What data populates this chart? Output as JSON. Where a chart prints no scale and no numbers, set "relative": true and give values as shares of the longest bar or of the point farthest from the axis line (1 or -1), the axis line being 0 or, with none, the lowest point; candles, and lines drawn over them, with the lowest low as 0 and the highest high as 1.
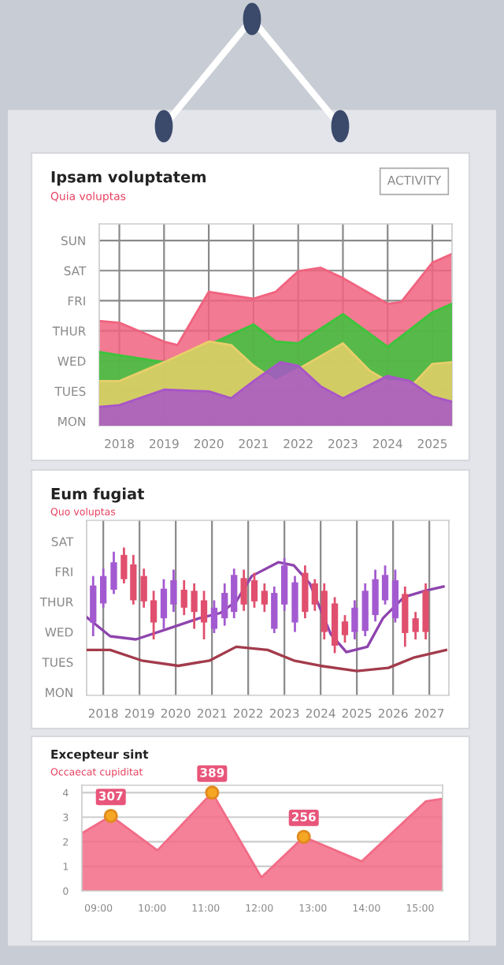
{
  "chart_data": [
    {
      "type": "area",
      "title": "Ipsam voluptatem",
      "subtitle": "Quia voluptas",
      "relative": true,
      "annotations": [
        "MON",
        "TUES",
        "WED",
        "THUR",
        "FRI",
        "SAT",
        "SUN",
        "ACTIVITY"
      ],
      "xlim": [
        2017.55,
        2025.44
      ],
      "xticks": [
        2018,
        2019,
        2020,
        2021,
        2022,
        2023,
        2024,
        2025
      ],
      "grid": true,
      "series": [
        {
          "type": "area",
          "color": "#f0637f",
          "x": [
            2017.55,
            2018,
            2019,
            2019.3,
            2020,
            2021,
            2021.5,
            2022,
            2022.5,
            2023,
            2024,
            2024.3,
            2025,
            2025.44
          ],
          "values": [
            0.61,
            0.6,
            0.49,
            0.47,
            0.78,
            0.74,
            0.78,
            0.9,
            0.92,
            0.86,
            0.71,
            0.72,
            0.95,
            1.0
          ]
        },
        {
          "type": "area",
          "color": "#3cc43c",
          "x": [
            2017.55,
            2018,
            2019,
            2020,
            2021,
            2021.5,
            2022,
            2023,
            2024,
            2025,
            2025.44
          ],
          "values": [
            0.43,
            0.41,
            0.37,
            0.47,
            0.59,
            0.49,
            0.48,
            0.65,
            0.46,
            0.66,
            0.71
          ]
        },
        {
          "type": "area",
          "color": "#e8cf6a",
          "x": [
            2017.55,
            2018,
            2019,
            2020,
            2020.5,
            2021,
            2021.5,
            2022,
            2023,
            2023.6,
            2024,
            2024.6,
            2025,
            2025.44
          ],
          "values": [
            0.26,
            0.26,
            0.37,
            0.49,
            0.47,
            0.35,
            0.26,
            0.33,
            0.48,
            0.32,
            0.26,
            0.25,
            0.36,
            0.37
          ]
        },
        {
          "type": "area",
          "color": "#a855c8",
          "x": [
            2017.55,
            2018,
            2019,
            2020,
            2020.5,
            2021,
            2021.6,
            2022,
            2022.5,
            2023,
            2024,
            2024.5,
            2025,
            2025.44
          ],
          "values": [
            0.11,
            0.12,
            0.21,
            0.2,
            0.16,
            0.26,
            0.37,
            0.35,
            0.23,
            0.16,
            0.29,
            0.26,
            0.17,
            0.14
          ]
        }
      ]
    },
    {
      "type": "candlestick",
      "title": "Eum fugiat",
      "subtitle": "Quo voluptas",
      "relative": true,
      "annotations": [
        "MON",
        "TUES",
        "WED",
        "THUR",
        "FRI",
        "SAT"
      ],
      "xlim": [
        2017.54,
        2027.54
      ],
      "xticks": [
        2018,
        2019,
        2020,
        2021,
        2022,
        2023,
        2024,
        2025,
        2026,
        2027
      ],
      "grid": "x",
      "x": [
        2017.72,
        2018.0,
        2018.29,
        2018.57,
        2018.83,
        2019.12,
        2019.39,
        2019.67,
        2019.94,
        2020.23,
        2020.51,
        2020.78,
        2021.06,
        2021.35,
        2021.61,
        2021.88,
        2022.17,
        2022.45,
        2022.72,
        2023.0,
        2023.29,
        2023.57,
        2023.84,
        2024.1,
        2024.39,
        2024.67,
        2024.94,
        2025.23,
        2025.51,
        2025.78,
        2026.06,
        2026.33,
        2026.62,
        2026.9
      ],
      "ohlc": [
        [
          0.29,
          0.73,
          0.16,
          0.64
        ],
        [
          0.47,
          0.8,
          0.43,
          0.73
        ],
        [
          0.6,
          0.96,
          0.56,
          0.86
        ],
        [
          0.93,
          1.0,
          0.66,
          0.7
        ],
        [
          0.84,
          0.93,
          0.46,
          0.5
        ],
        [
          0.73,
          0.8,
          0.43,
          0.49
        ],
        [
          0.5,
          0.59,
          0.13,
          0.29
        ],
        [
          0.33,
          0.7,
          0.23,
          0.61
        ],
        [
          0.46,
          0.79,
          0.39,
          0.69
        ],
        [
          0.6,
          0.69,
          0.36,
          0.43
        ],
        [
          0.59,
          0.66,
          0.23,
          0.39
        ],
        [
          0.5,
          0.59,
          0.13,
          0.29
        ],
        [
          0.23,
          0.5,
          0.19,
          0.43
        ],
        [
          0.33,
          0.66,
          0.26,
          0.57
        ],
        [
          0.39,
          0.8,
          0.33,
          0.74
        ],
        [
          0.71,
          0.79,
          0.4,
          0.46
        ],
        [
          0.69,
          0.76,
          0.43,
          0.49
        ],
        [
          0.59,
          0.66,
          0.39,
          0.46
        ],
        [
          0.23,
          0.63,
          0.19,
          0.57
        ],
        [
          0.46,
          0.9,
          0.4,
          0.83
        ],
        [
          0.29,
          0.73,
          0.2,
          0.67
        ],
        [
          0.76,
          0.83,
          0.33,
          0.39
        ],
        [
          0.66,
          0.7,
          0.4,
          0.46
        ],
        [
          0.59,
          0.66,
          0.13,
          0.2
        ],
        [
          0.47,
          0.53,
          0.0,
          0.07
        ],
        [
          0.3,
          0.36,
          0.1,
          0.17
        ],
        [
          0.2,
          0.5,
          0.13,
          0.43
        ],
        [
          0.21,
          0.66,
          0.16,
          0.59
        ],
        [
          0.36,
          0.79,
          0.3,
          0.7
        ],
        [
          0.5,
          0.83,
          0.46,
          0.74
        ],
        [
          0.33,
          0.79,
          0.29,
          0.69
        ],
        [
          0.56,
          0.63,
          0.06,
          0.19
        ],
        [
          0.33,
          0.39,
          0.13,
          0.2
        ],
        [
          0.59,
          0.66,
          0.13,
          0.2
        ]
      ],
      "colors": [
        "#a35ad0",
        "#a35ad0",
        "#a35ad0",
        "#e0506e",
        "#e0506e",
        "#e0506e",
        "#e0506e",
        "#a35ad0",
        "#a35ad0",
        "#e0506e",
        "#e0506e",
        "#e0506e",
        "#a35ad0",
        "#a35ad0",
        "#a35ad0",
        "#e0506e",
        "#e0506e",
        "#e0506e",
        "#a35ad0",
        "#a35ad0",
        "#a35ad0",
        "#e0506e",
        "#e0506e",
        "#e0506e",
        "#e0506e",
        "#e0506e",
        "#a35ad0",
        "#a35ad0",
        "#a35ad0",
        "#a35ad0",
        "#a35ad0",
        "#e0506e",
        "#e0506e",
        "#e0506e"
      ],
      "series": [
        {
          "type": "line",
          "color": "#8e44ad",
          "x": [
            2017.54,
            2018.19,
            2018.9,
            2019.78,
            2020.65,
            2021.23,
            2021.67,
            2022.1,
            2022.83,
            2023.26,
            2023.7,
            2024.28,
            2024.71,
            2025.29,
            2025.72,
            2026.3,
            2026.88,
            2027.39
          ],
          "values": [
            0.34,
            0.16,
            0.13,
            0.23,
            0.33,
            0.38,
            0.49,
            0.73,
            0.86,
            0.83,
            0.66,
            0.18,
            0.01,
            0.06,
            0.33,
            0.53,
            0.59,
            0.63
          ]
        },
        {
          "type": "line",
          "color": "#a33b4b",
          "x": [
            2017.54,
            2018.19,
            2019.06,
            2020.07,
            2020.94,
            2021.67,
            2022.54,
            2023.26,
            2023.99,
            2025.0,
            2025.87,
            2026.59,
            2027.46
          ],
          "values": [
            0.03,
            0.03,
            -0.07,
            -0.12,
            -0.07,
            0.06,
            0.03,
            -0.07,
            -0.12,
            -0.17,
            -0.14,
            -0.04,
            0.03
          ]
        }
      ]
    },
    {
      "type": "area",
      "title": "Excepteur sint",
      "subtitle": "Occaecat cupiditat",
      "xlim": [
        8.69,
        15.42
      ],
      "xticks": [
        {
          "value": 9,
          "label": "09:00"
        },
        {
          "value": 10,
          "label": "10:00"
        },
        {
          "value": 11,
          "label": "11:00"
        },
        {
          "value": 12,
          "label": "12:00"
        },
        {
          "value": 13,
          "label": "13:00"
        },
        {
          "value": 14,
          "label": "14:00"
        },
        {
          "value": 15,
          "label": "15:00"
        }
      ],
      "ylim": [
        0,
        4.3
      ],
      "yticks": [
        0,
        1,
        2,
        3,
        4
      ],
      "grid": "y",
      "annotations": [
        {
          "text": "307",
          "x": 9.23,
          "y": 3.05
        },
        {
          "text": "389",
          "x": 11.12,
          "y": 4.0
        },
        {
          "text": "256",
          "x": 12.83,
          "y": 2.2
        }
      ],
      "series": [
        {
          "type": "area",
          "color": "#f26b86",
          "x": [
            8.69,
            9.23,
            10.1,
            11.12,
            12.04,
            12.83,
            13.91,
            15.11,
            15.42
          ],
          "values": [
            2.35,
            3.05,
            1.65,
            4.0,
            0.55,
            2.2,
            1.2,
            3.65,
            3.75
          ]
        },
        {
          "type": "scatter",
          "color": "#f5a623",
          "marker": "circle",
          "x": [
            9.23,
            11.12,
            12.83
          ],
          "values": [
            3.05,
            4.0,
            2.2
          ]
        }
      ]
    }
  ]
}
